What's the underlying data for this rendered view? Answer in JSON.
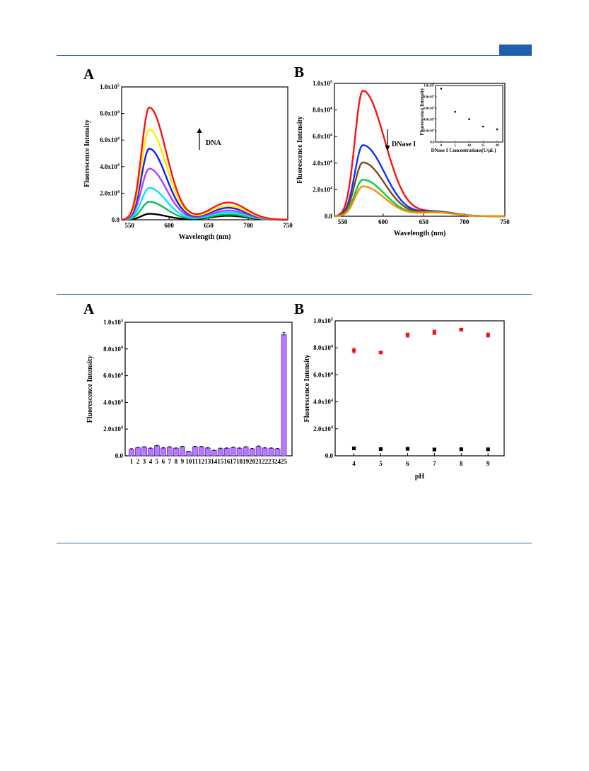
{
  "page": {
    "panels": [
      {
        "letter": "A"
      },
      {
        "letter": "B"
      },
      {
        "letter": "A"
      },
      {
        "letter": "B"
      }
    ]
  },
  "colors": {
    "rule": "#2a6fb3",
    "tab": "#1f5fb0",
    "bar_fill": "#b57bff",
    "bar_edge": "#6a2fb0",
    "ph_red": "#e8131d",
    "ph_black": "#000000"
  },
  "chart_data": [
    {
      "id": "A1",
      "type": "line",
      "xlabel": "Wavelength (nm)",
      "ylabel": "Fluorescence Intensity",
      "xlim": [
        540,
        750
      ],
      "ylim": [
        0,
        100000
      ],
      "x_ticks": [
        550,
        600,
        650,
        700,
        750
      ],
      "y_ticks": [
        "0.0",
        "2.0x10⁴",
        "4.0x10⁴",
        "6.0x10⁴",
        "8.0x10⁴",
        "1.0x10⁵"
      ],
      "annotation": {
        "label": "DNA",
        "arrow": "up"
      },
      "series": [
        {
          "color": "#000000",
          "peak": 4500,
          "shoulder": 3000
        },
        {
          "color": "#00c05a",
          "peak": 13500,
          "shoulder": 4000
        },
        {
          "color": "#00e5ff",
          "peak": 24000,
          "shoulder": 5500
        },
        {
          "color": "#b040ff",
          "peak": 38500,
          "shoulder": 7000
        },
        {
          "color": "#1020ff",
          "peak": 53500,
          "shoulder": 9000
        },
        {
          "color": "#ffee00",
          "peak": 68000,
          "shoulder": 10500
        },
        {
          "color": "#ff1010",
          "peak": 84500,
          "shoulder": 13000
        }
      ]
    },
    {
      "id": "B1",
      "type": "line",
      "xlabel": "Wavelength (nm)",
      "ylabel": "Fluorescence Intensity",
      "xlim": [
        540,
        750
      ],
      "ylim": [
        0,
        100000
      ],
      "x_ticks": [
        550,
        600,
        650,
        700,
        750
      ],
      "y_ticks": [
        "0.0",
        "2.0x10⁴",
        "4.0x10⁴",
        "6.0x10⁴",
        "8.0x10⁴",
        "1.0x10⁵"
      ],
      "annotation": {
        "label": "DNase I",
        "arrow": "down"
      },
      "series": [
        {
          "color": "#ff1010",
          "peak": 94500,
          "shoulder": 3500
        },
        {
          "color": "#1030ff",
          "peak": 53500,
          "shoulder": 3500
        },
        {
          "color": "#7a4a1a",
          "peak": 40500,
          "shoulder": 3200
        },
        {
          "color": "#00d040",
          "peak": 27500,
          "shoulder": 3000
        },
        {
          "color": "#ff8a00",
          "peak": 22500,
          "shoulder": 2800
        }
      ],
      "inset": {
        "type": "scatter",
        "xlabel": "DNase I Concentrations(U/μL)",
        "ylabel": "Fluorescence Intensity",
        "xlim": [
          -2,
          22
        ],
        "ylim": [
          0,
          100000
        ],
        "x_ticks": [
          0,
          5,
          10,
          15,
          20
        ],
        "y_ticks": [
          "0.0",
          "2.0x10⁴",
          "4.0x10⁴",
          "6.0x10⁴",
          "8.0x10⁴",
          "1.0x10⁵"
        ],
        "x": [
          0,
          5,
          10,
          15,
          20
        ],
        "y": [
          94500,
          53500,
          40500,
          27500,
          22500
        ]
      }
    },
    {
      "id": "A2",
      "type": "bar",
      "xlabel": "",
      "ylabel": "Fluorescence Intensity",
      "ylim": [
        0,
        100000
      ],
      "y_ticks": [
        "0.0",
        "2.0x10⁴",
        "4.0x10⁴",
        "6.0x10⁴",
        "8.0x10⁴",
        "1.0x10⁵"
      ],
      "categories": [
        "1",
        "2",
        "3",
        "4",
        "5",
        "6",
        "7",
        "8",
        "9",
        "10",
        "11",
        "12",
        "13",
        "14",
        "15",
        "16",
        "17",
        "18",
        "19",
        "20",
        "21",
        "22",
        "23",
        "24",
        "25"
      ],
      "values": [
        5000,
        6000,
        6500,
        5500,
        7500,
        5800,
        6500,
        5600,
        6800,
        3200,
        6800,
        6700,
        5800,
        4000,
        5400,
        5600,
        6200,
        5600,
        6500,
        5200,
        7000,
        5800,
        5600,
        5200,
        91000
      ],
      "errors": [
        400,
        400,
        400,
        400,
        400,
        400,
        400,
        400,
        400,
        300,
        400,
        400,
        400,
        300,
        400,
        400,
        400,
        400,
        400,
        400,
        400,
        400,
        400,
        400,
        1500
      ]
    },
    {
      "id": "B2",
      "type": "scatter",
      "xlabel": "pH",
      "ylabel": "Fluorescence Intensity",
      "xlim": [
        3.3,
        9.6
      ],
      "ylim": [
        0,
        100000
      ],
      "x_ticks": [
        4,
        5,
        6,
        7,
        8,
        9
      ],
      "y_ticks": [
        "0.0",
        "2.0x10⁴",
        "4.0x10⁴",
        "6.0x10⁴",
        "8.0x10⁴",
        "1.0x10⁵"
      ],
      "series": [
        {
          "marker": "circle",
          "color": "#e8131d",
          "x": [
            4,
            5,
            6,
            7,
            8,
            9
          ],
          "y": [
            78000,
            76500,
            89500,
            91500,
            93500,
            89500
          ],
          "errors": [
            1800,
            800,
            1500,
            1600,
            1000,
            1500
          ]
        },
        {
          "marker": "square",
          "color": "#000000",
          "x": [
            4,
            5,
            6,
            7,
            8,
            9
          ],
          "y": [
            5500,
            5000,
            5200,
            4700,
            4900,
            4800
          ],
          "errors": [
            0,
            0,
            0,
            0,
            0,
            0
          ]
        }
      ]
    }
  ]
}
